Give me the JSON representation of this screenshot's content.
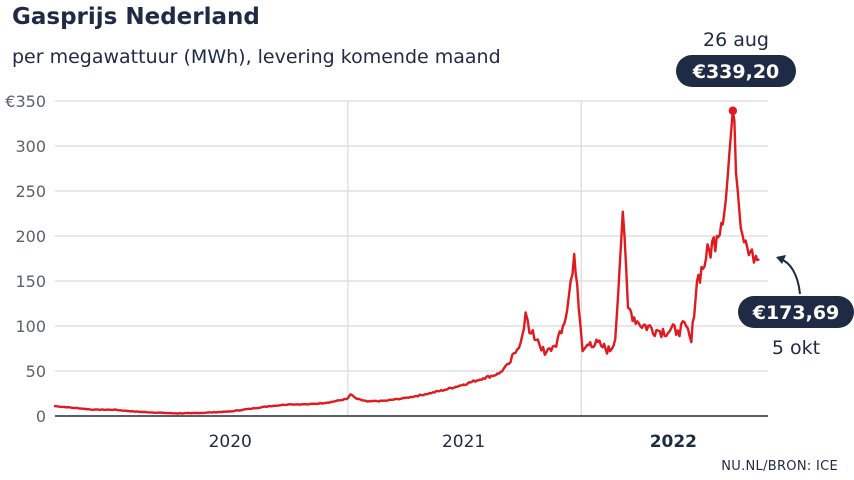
{
  "chart_data": {
    "type": "line",
    "title": "Gasprijs Nederland",
    "subtitle": "per megawattuur (MWh), levering komende maand",
    "source": "NU.NL/BRON: ICE",
    "y_ticks": [
      "€350",
      "300",
      "250",
      "200",
      "150",
      "100",
      "50",
      "0"
    ],
    "y_tick_values": [
      350,
      300,
      250,
      200,
      150,
      100,
      50,
      0
    ],
    "ylim": [
      0,
      350
    ],
    "x_tick_labels": [
      "2020",
      "2021",
      "2022"
    ],
    "grid": true,
    "line_color": "#e01a1f",
    "annotations": {
      "peak": {
        "date": "26 aug",
        "value_label": "€339,20",
        "value": 339.2
      },
      "last": {
        "date": "5 okt",
        "value_label": "€173,69",
        "value": 173.69
      }
    },
    "series": [
      {
        "values_by_date": [
          [
            "2019-10-01",
            11
          ],
          [
            "2019-11-01",
            9
          ],
          [
            "2019-12-01",
            7
          ],
          [
            "2020-01-01",
            7
          ],
          [
            "2020-02-01",
            5
          ],
          [
            "2020-03-01",
            4
          ],
          [
            "2020-04-01",
            3
          ],
          [
            "2020-05-01",
            3
          ],
          [
            "2020-06-01",
            4
          ],
          [
            "2020-07-01",
            5
          ],
          [
            "2020-08-01",
            8
          ],
          [
            "2020-09-01",
            11
          ],
          [
            "2020-10-01",
            13
          ],
          [
            "2020-11-01",
            13
          ],
          [
            "2020-12-01",
            15
          ],
          [
            "2020-12-31",
            19
          ],
          [
            "2021-01-05",
            24
          ],
          [
            "2021-01-15",
            19
          ],
          [
            "2021-02-01",
            16
          ],
          [
            "2021-03-01",
            17
          ],
          [
            "2021-04-01",
            20
          ],
          [
            "2021-05-01",
            24
          ],
          [
            "2021-06-01",
            29
          ],
          [
            "2021-07-01",
            35
          ],
          [
            "2021-08-01",
            42
          ],
          [
            "2021-08-25",
            47
          ],
          [
            "2021-09-10",
            58
          ],
          [
            "2021-09-20",
            70
          ],
          [
            "2021-10-01",
            90
          ],
          [
            "2021-10-06",
            115
          ],
          [
            "2021-10-12",
            92
          ],
          [
            "2021-10-25",
            85
          ],
          [
            "2021-11-05",
            68
          ],
          [
            "2021-11-20",
            78
          ],
          [
            "2021-12-01",
            92
          ],
          [
            "2021-12-10",
            118
          ],
          [
            "2021-12-21",
            180
          ],
          [
            "2021-12-28",
            120
          ],
          [
            "2022-01-03",
            72
          ],
          [
            "2022-01-15",
            82
          ],
          [
            "2022-02-01",
            78
          ],
          [
            "2022-02-15",
            72
          ],
          [
            "2022-02-23",
            85
          ],
          [
            "2022-03-07",
            227
          ],
          [
            "2022-03-15",
            120
          ],
          [
            "2022-04-01",
            103
          ],
          [
            "2022-05-01",
            95
          ],
          [
            "2022-06-01",
            95
          ],
          [
            "2022-06-14",
            100
          ],
          [
            "2022-06-22",
            82
          ],
          [
            "2022-07-01",
            150
          ],
          [
            "2022-07-15",
            175
          ],
          [
            "2022-08-01",
            200
          ],
          [
            "2022-08-15",
            240
          ],
          [
            "2022-08-26",
            339.2
          ],
          [
            "2022-09-05",
            230
          ],
          [
            "2022-09-15",
            195
          ],
          [
            "2022-09-25",
            185
          ],
          [
            "2022-10-01",
            178
          ],
          [
            "2022-10-05",
            173.69
          ]
        ]
      }
    ]
  }
}
